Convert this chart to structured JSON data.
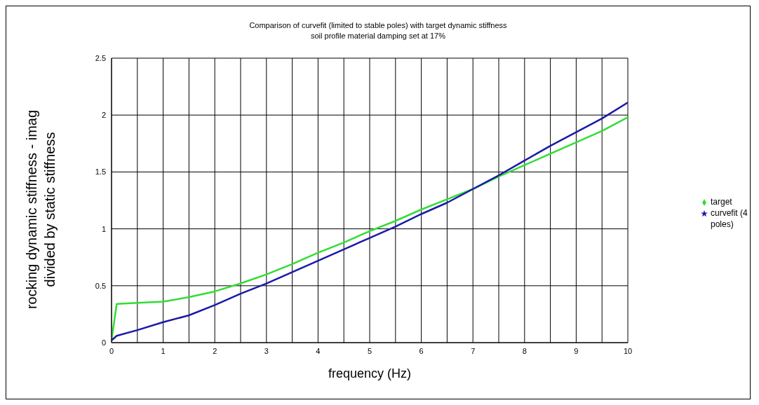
{
  "chart_data": {
    "type": "line",
    "title": "Comparison of curvefit (limited to stable poles) with target dynamic stiffness",
    "subtitle": "soil profile material damping set at 17%",
    "xlabel": "frequency (Hz)",
    "ylabel": "rocking dynamic stiffness - imag divided by static stiffness",
    "xlim": [
      0,
      10
    ],
    "ylim": [
      0,
      2.5
    ],
    "xticks": [
      0,
      {
        "value": 0.5,
        "label": null
      },
      1,
      {
        "value": 1.5,
        "label": null
      },
      2,
      {
        "value": 2.5,
        "label": null
      },
      3,
      {
        "value": 3.5,
        "label": null
      },
      4,
      {
        "value": 4.5,
        "label": null
      },
      5,
      {
        "value": 5.5,
        "label": null
      },
      6,
      {
        "value": 6.5,
        "label": null
      },
      7,
      {
        "value": 7.5,
        "label": null
      },
      8,
      {
        "value": 8.5,
        "label": null
      },
      9,
      {
        "value": 9.5,
        "label": null
      },
      10
    ],
    "yticks": [
      0,
      0.5,
      1,
      1.5,
      2,
      2.5
    ],
    "grid": true,
    "legend": "right",
    "x": [
      0,
      0.1,
      0.5,
      1,
      1.5,
      2,
      2.5,
      3,
      3.5,
      4,
      4.5,
      5,
      5.5,
      6,
      6.5,
      7,
      7.5,
      8,
      8.5,
      9,
      9.5,
      10
    ],
    "series": [
      {
        "name": "target",
        "color": "#33dd33",
        "values": [
          0.02,
          0.34,
          0.35,
          0.36,
          0.4,
          0.45,
          0.52,
          0.6,
          0.69,
          0.79,
          0.88,
          0.98,
          1.07,
          1.17,
          1.26,
          1.35,
          1.46,
          1.56,
          1.66,
          1.76,
          1.86,
          1.98
        ]
      },
      {
        "name": "curvefit (4 poles)",
        "color": "#1a1aa6",
        "values": [
          0.02,
          0.06,
          0.11,
          0.18,
          0.24,
          0.33,
          0.43,
          0.52,
          0.62,
          0.72,
          0.82,
          0.92,
          1.02,
          1.13,
          1.23,
          1.35,
          1.47,
          1.6,
          1.73,
          1.85,
          1.97,
          2.11
        ]
      }
    ]
  }
}
